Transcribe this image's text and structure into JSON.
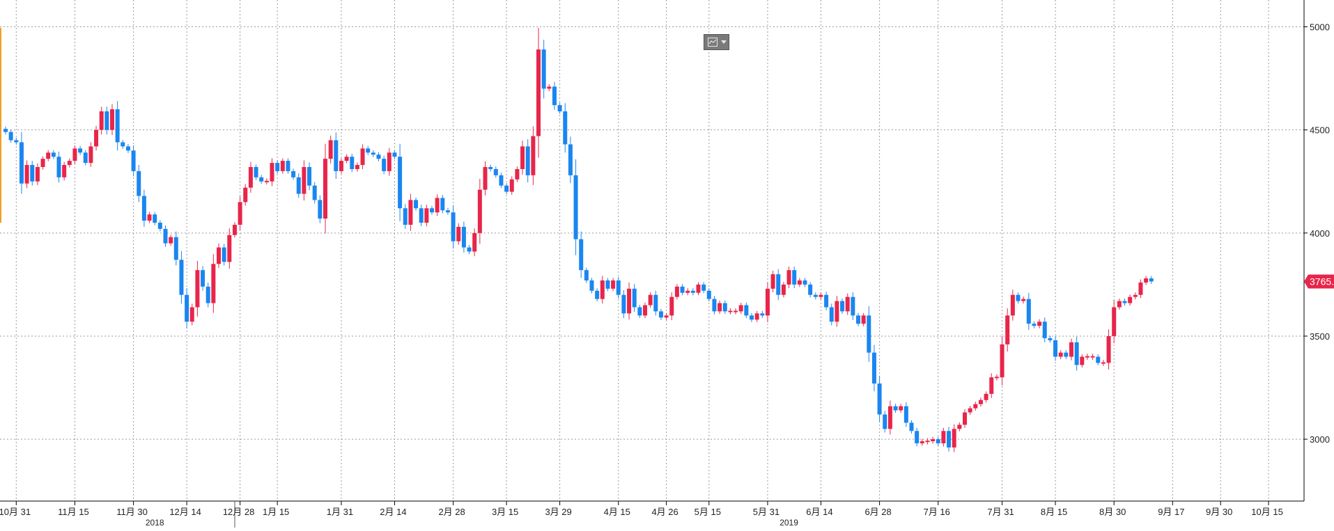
{
  "chart_data": {
    "type": "candlestick",
    "title": "",
    "xlabel": "",
    "ylabel": "",
    "ylim": [
      2700,
      5130
    ],
    "y_ticks": [
      3000,
      3500,
      4000,
      4500,
      5000
    ],
    "grid": true,
    "y_axis_position": "right",
    "colors": {
      "up": "#e8254a",
      "down": "#1a86f0",
      "grid": "#9a9a9a",
      "axis": "#000000",
      "left_marker": "#f0a020"
    },
    "x_tick_labels": [
      "10月 31",
      "11月 15",
      "11月 30",
      "12月 14",
      "12月 28",
      "1月 15",
      "1月 31",
      "2月 14",
      "2月 28",
      "3月 15",
      "3月 29",
      "4月 15",
      "4月 26",
      "5月 15",
      "5月 31",
      "6月 14",
      "6月 28",
      "7月 16",
      "7月 31",
      "8月 15",
      "8月 30",
      "9月 17",
      "9月 30",
      "10月 15"
    ],
    "x_tick_index": [
      2,
      13,
      24,
      34,
      44,
      51,
      63,
      73,
      84,
      94,
      104,
      115,
      124,
      132,
      143,
      153,
      164,
      175,
      187,
      197,
      208,
      219,
      228,
      237
    ],
    "year_labels": [
      {
        "label": "2018",
        "index": 28
      },
      {
        "label": "2019",
        "index": 147
      }
    ],
    "last_price": "3765.0",
    "last_close": 3765,
    "closes": [
      4490,
      4450,
      4440,
      4240,
      4330,
      4250,
      4320,
      4360,
      4390,
      4370,
      4270,
      4330,
      4350,
      4410,
      4390,
      4340,
      4420,
      4500,
      4590,
      4500,
      4600,
      4440,
      4420,
      4400,
      4300,
      4180,
      4060,
      4090,
      4050,
      4020,
      3950,
      3980,
      3870,
      3700,
      3570,
      3640,
      3820,
      3740,
      3660,
      3850,
      3930,
      3860,
      3990,
      4040,
      4150,
      4220,
      4320,
      4270,
      4250,
      4250,
      4340,
      4300,
      4350,
      4300,
      4270,
      4190,
      4320,
      4230,
      4160,
      4070,
      4360,
      4450,
      4300,
      4350,
      4370,
      4310,
      4330,
      4410,
      4390,
      4380,
      4360,
      4300,
      4390,
      4370,
      4120,
      4040,
      4160,
      4120,
      4050,
      4120,
      4100,
      4170,
      4110,
      4100,
      3960,
      4030,
      3930,
      3910,
      4000,
      4210,
      4320,
      4310,
      4280,
      4230,
      4200,
      4260,
      4310,
      4420,
      4280,
      4470,
      4890,
      4700,
      4710,
      4620,
      4590,
      4430,
      4280,
      3970,
      3820,
      3770,
      3720,
      3680,
      3770,
      3730,
      3770,
      3700,
      3610,
      3730,
      3640,
      3600,
      3650,
      3700,
      3620,
      3590,
      3600,
      3690,
      3740,
      3710,
      3720,
      3710,
      3750,
      3720,
      3680,
      3620,
      3660,
      3620,
      3620,
      3620,
      3650,
      3600,
      3580,
      3610,
      3600,
      3730,
      3800,
      3700,
      3750,
      3820,
      3750,
      3770,
      3750,
      3700,
      3690,
      3700,
      3640,
      3570,
      3670,
      3620,
      3690,
      3600,
      3560,
      3600,
      3420,
      3270,
      3120,
      3050,
      3160,
      3140,
      3160,
      3080,
      3040,
      2980,
      2990,
      2990,
      3000,
      2980,
      3040,
      2960,
      3050,
      3070,
      3130,
      3150,
      3170,
      3190,
      3220,
      3300,
      3300,
      3460,
      3600,
      3700,
      3670,
      3680,
      3560,
      3550,
      3570,
      3490,
      3480,
      3400,
      3420,
      3400,
      3470,
      3360,
      3400,
      3400,
      3400,
      3370,
      3370,
      3500,
      3640,
      3670,
      3660,
      3690,
      3700,
      3760,
      3780,
      3765
    ]
  }
}
